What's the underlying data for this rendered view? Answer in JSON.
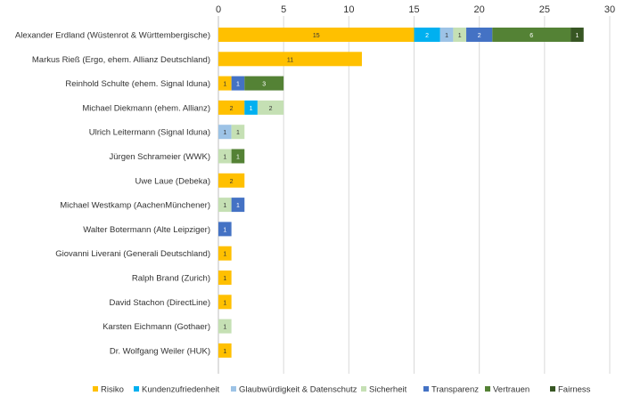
{
  "chart_data": {
    "type": "bar",
    "orientation": "horizontal",
    "stacked": true,
    "title": "",
    "xlabel": "",
    "ylabel": "",
    "xlim": [
      0,
      30
    ],
    "x_ticks": [
      0,
      5,
      10,
      15,
      20,
      25,
      30
    ],
    "x_axis_position": "top",
    "grid": true,
    "legend_position": "bottom",
    "categories": [
      "Alexander Erdland (Wüstenrot & Württembergische)",
      "Markus Rieß (Ergo, ehem. Allianz Deutschland)",
      "Reinhold Schulte (ehem. Signal Iduna)",
      "Michael Diekmann (ehem. Allianz)",
      "Ulrich Leitermann (Signal Iduna)",
      "Jürgen Schrameier (WWK)",
      "Uwe Laue (Debeka)",
      "Michael Westkamp (AachenMünchener)",
      "Walter Botermann (Alte Leipziger)",
      "Giovanni Liverani (Generali Deutschland)",
      "Ralph Brand (Zurich)",
      "David Stachon (DirectLine)",
      "Karsten Eichmann (Gothaer)",
      "Dr. Wolfgang Weiler (HUK)"
    ],
    "series": [
      {
        "name": "Risiko",
        "color": "#FFC000",
        "values": [
          15,
          11,
          1,
          2,
          0,
          0,
          2,
          0,
          0,
          1,
          1,
          1,
          0,
          1
        ]
      },
      {
        "name": "Kundenzufriedenheit",
        "color": "#00B0F0",
        "values": [
          2,
          0,
          0,
          1,
          0,
          0,
          0,
          0,
          0,
          0,
          0,
          0,
          0,
          0
        ]
      },
      {
        "name": "Glaubwürdigkeit & Datenschutz",
        "color": "#9DC3E6",
        "values": [
          1,
          0,
          0,
          0,
          1,
          0,
          0,
          0,
          0,
          0,
          0,
          0,
          0,
          0
        ]
      },
      {
        "name": "Sicherheit",
        "color": "#C5E0B4",
        "values": [
          1,
          0,
          0,
          2,
          1,
          1,
          0,
          1,
          0,
          0,
          0,
          0,
          1,
          0
        ]
      },
      {
        "name": "Transparenz",
        "color": "#4472C4",
        "values": [
          2,
          0,
          1,
          0,
          0,
          0,
          0,
          1,
          1,
          0,
          0,
          0,
          0,
          0
        ]
      },
      {
        "name": "Vertrauen",
        "color": "#548235",
        "values": [
          6,
          0,
          3,
          0,
          0,
          1,
          0,
          0,
          0,
          0,
          0,
          0,
          0,
          0
        ]
      },
      {
        "name": "Fairness",
        "color": "#375623",
        "values": [
          1,
          0,
          0,
          0,
          0,
          0,
          0,
          0,
          0,
          0,
          0,
          0,
          0,
          0
        ]
      }
    ]
  }
}
